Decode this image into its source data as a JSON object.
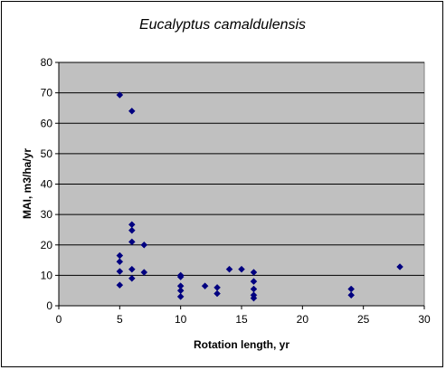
{
  "chart_data": {
    "type": "scatter",
    "title": "Eucalyptus camaldulensis",
    "xlabel": "Rotation length, yr",
    "ylabel": "MAI, m3/ha/yr",
    "xlim": [
      0,
      30
    ],
    "ylim": [
      0,
      80
    ],
    "xticks": [
      "0",
      "5",
      "10",
      "15",
      "20",
      "25",
      "30"
    ],
    "yticks": [
      "0",
      "10",
      "20",
      "30",
      "40",
      "50",
      "60",
      "70",
      "80"
    ],
    "grid": "horizontal",
    "legend": "none",
    "colors": {
      "plot_bg": "#c0c0c0",
      "marker": "#000080",
      "gridline": "#000000"
    },
    "series": [
      {
        "marker": "diamond",
        "points": [
          [
            5,
            69.3
          ],
          [
            5,
            16.5
          ],
          [
            5,
            14.5
          ],
          [
            5,
            11.3
          ],
          [
            5,
            6.8
          ],
          [
            6,
            64
          ],
          [
            6,
            26.7
          ],
          [
            6,
            24.8
          ],
          [
            6,
            21
          ],
          [
            6,
            12
          ],
          [
            6,
            9
          ],
          [
            7,
            20
          ],
          [
            7,
            11
          ],
          [
            10,
            10
          ],
          [
            10,
            9.5
          ],
          [
            10,
            6.5
          ],
          [
            10,
            5
          ],
          [
            10,
            3
          ],
          [
            12,
            6.5
          ],
          [
            13,
            6
          ],
          [
            13,
            4
          ],
          [
            14,
            12
          ],
          [
            15,
            12
          ],
          [
            16,
            11
          ],
          [
            16,
            8
          ],
          [
            16,
            5.5
          ],
          [
            16,
            3.5
          ],
          [
            16,
            2.5
          ],
          [
            24,
            5.5
          ],
          [
            24,
            3.5
          ],
          [
            28,
            12.8
          ]
        ]
      }
    ]
  }
}
